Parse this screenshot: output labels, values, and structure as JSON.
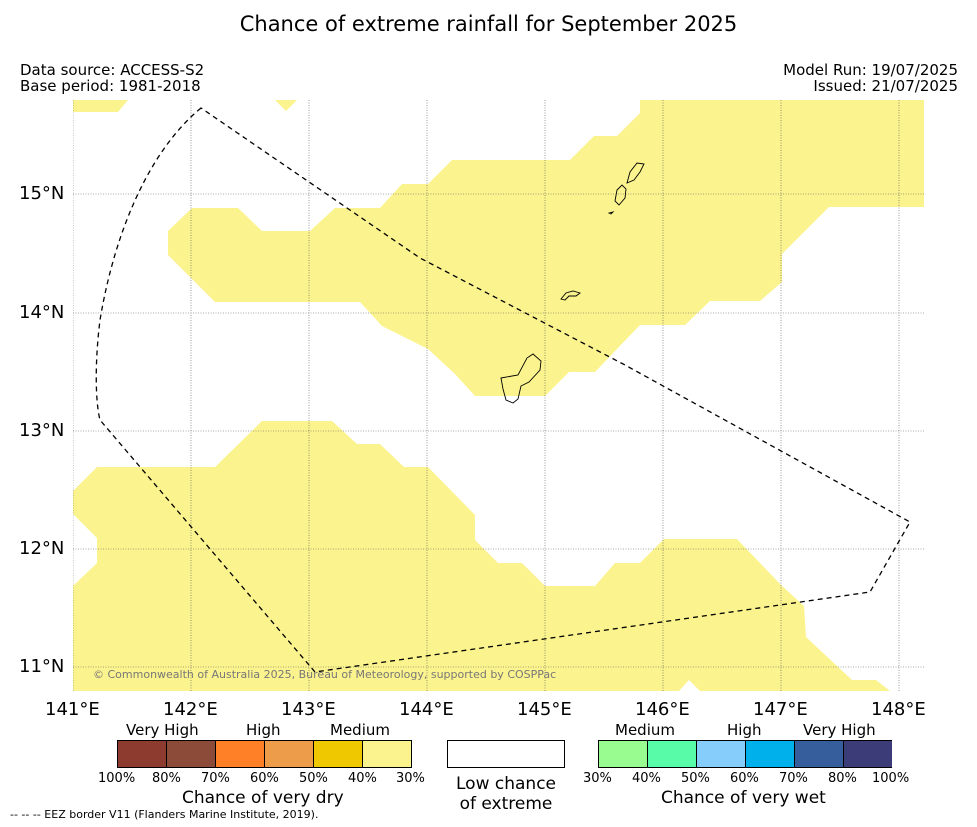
{
  "title": "Chance of extreme rainfall for September 2025",
  "header": {
    "data_source": "Data source: ACCESS-S2",
    "base_period": "Base period: 1981-2018",
    "model_run": "Model Run: 19/07/2025",
    "issued": "Issued: 21/07/2025"
  },
  "map": {
    "lon_labels": [
      "141°E",
      "142°E",
      "143°E",
      "144°E",
      "145°E",
      "146°E",
      "147°E",
      "148°E"
    ],
    "lat_labels": [
      "15°N",
      "14°N",
      "13°N",
      "12°N",
      "11°N"
    ],
    "copyright": "© Commonwealth of Australia 2025, Bureau of Meteorology, supported by COSPPac",
    "medium_dry_color": "#fbf38e",
    "eez_line_style": "dashed black"
  },
  "legend": {
    "dry": {
      "levels": [
        "Very High",
        "High",
        "Medium"
      ],
      "ticks": [
        "100%",
        "80%",
        "70%",
        "60%",
        "50%",
        "40%",
        "30%"
      ],
      "colors": [
        "#8e3b2f",
        "#8b4b38",
        "#ff8026",
        "#ed9c4a",
        "#f0c800",
        "#fbf38e"
      ],
      "title": "Chance of very dry"
    },
    "low": {
      "line1": "Low chance",
      "line2": "of extreme"
    },
    "wet": {
      "levels": [
        "Medium",
        "High",
        "Very High"
      ],
      "ticks": [
        "30%",
        "40%",
        "50%",
        "60%",
        "70%",
        "80%",
        "100%"
      ],
      "colors": [
        "#98fc91",
        "#58fca8",
        "#87cdfc",
        "#00b0eb",
        "#375e9c",
        "#3c3d78"
      ],
      "title": "Chance of very wet"
    }
  },
  "footer": {
    "eez": "--  --  -- EEZ border V11 (Flanders Marine Institute, 2019)."
  }
}
